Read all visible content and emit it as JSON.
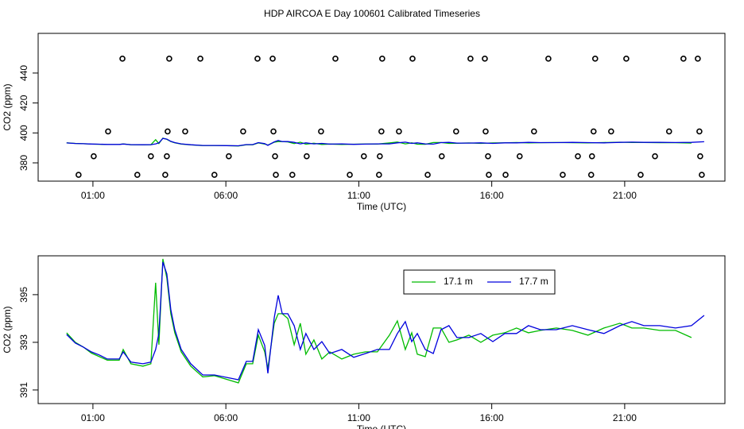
{
  "title": "HDP AIRCOA E  Day 100601  Calibrated Timeseries",
  "chart_data": [
    {
      "type": "line",
      "xlabel": "Time (UTC)",
      "ylabel": "CO2 (ppm)",
      "xlim": [
        -1.06,
        24.77
      ],
      "ylim": [
        367.8,
        466.5
      ],
      "xticks": [
        {
          "value": 1,
          "label": "01:00"
        },
        {
          "value": 6,
          "label": "06:00"
        },
        {
          "value": 11,
          "label": "11:00"
        },
        {
          "value": 16,
          "label": "16:00"
        },
        {
          "value": 21,
          "label": "21:00"
        }
      ],
      "yticks": [
        380,
        400,
        420,
        440
      ],
      "x": [
        0.01,
        0.34,
        0.64,
        0.94,
        1.24,
        1.54,
        1.99,
        2.14,
        2.43,
        2.88,
        3.18,
        3.36,
        3.48,
        3.63,
        3.78,
        3.93,
        4.08,
        4.32,
        4.68,
        5.13,
        5.57,
        6.02,
        6.47,
        6.77,
        7.01,
        7.22,
        7.46,
        7.58,
        7.82,
        7.97,
        8.12,
        8.33,
        8.57,
        8.8,
        9.01,
        9.31,
        9.61,
        9.91,
        10.36,
        10.81,
        11.25,
        11.7,
        12.15,
        12.45,
        12.75,
        12.99,
        13.2,
        13.5,
        13.8,
        14.09,
        14.39,
        14.69,
        15.14,
        15.59,
        16.04,
        16.49,
        16.93,
        17.38,
        17.83,
        18.43,
        19.03,
        19.62,
        20.22,
        20.82,
        21.27,
        21.72,
        22.32,
        22.91,
        23.51,
        23.99
      ],
      "series": [
        {
          "color": "#00bb00",
          "values": [
            393.4,
            393.0,
            392.8,
            392.55,
            392.4,
            392.25,
            392.25,
            392.7,
            392.1,
            392.0,
            392.1,
            395.5,
            392.9,
            396.5,
            395.7,
            394.2,
            393.4,
            392.6,
            392.0,
            391.55,
            391.6,
            391.45,
            391.3,
            392.1,
            392.1,
            393.3,
            392.6,
            391.9,
            393.8,
            394.2,
            394.2,
            394.0,
            392.9,
            393.8,
            392.5,
            393.1,
            392.3,
            392.6,
            392.3,
            392.5,
            392.6,
            392.6,
            393.3,
            393.9,
            392.7,
            393.4,
            392.5,
            392.4,
            393.6,
            393.6,
            393.0,
            393.1,
            393.3,
            393.0,
            393.3,
            393.4,
            393.6,
            393.4,
            393.5,
            393.6,
            393.5,
            393.3,
            393.6,
            393.8,
            393.6,
            393.6,
            393.5,
            393.5,
            393.2,
            null
          ]
        },
        {
          "color": "#0000dd",
          "values": [
            393.33,
            392.97,
            392.8,
            392.6,
            392.47,
            392.3,
            392.3,
            392.6,
            392.17,
            392.1,
            392.17,
            392.7,
            393.37,
            396.37,
            395.87,
            394.37,
            393.53,
            392.7,
            392.1,
            391.63,
            391.63,
            391.53,
            391.43,
            392.2,
            392.2,
            393.53,
            392.87,
            391.7,
            394.03,
            394.97,
            394.2,
            394.2,
            393.7,
            392.7,
            393.37,
            392.7,
            393.03,
            392.53,
            392.7,
            392.37,
            392.53,
            392.7,
            392.7,
            393.37,
            393.87,
            393.03,
            393.37,
            392.7,
            392.53,
            393.53,
            393.7,
            393.2,
            393.2,
            393.37,
            393.03,
            393.37,
            393.37,
            393.7,
            393.53,
            393.53,
            393.7,
            393.53,
            393.37,
            393.7,
            393.87,
            393.7,
            393.7,
            393.6,
            393.7,
            394.13
          ]
        },
        {
          "type": "scatter",
          "color": "#000000",
          "x": [
            2.11,
            3.87,
            5.04,
            7.19,
            7.76,
            10.12,
            11.88,
            13.02,
            15.2,
            15.74,
            18.13,
            19.89,
            21.06,
            23.21,
            23.75,
            1.57,
            3.81,
            4.47,
            6.65,
            7.79,
            9.58,
            11.85,
            12.51,
            14.66,
            15.77,
            17.59,
            19.83,
            20.49,
            22.67,
            23.81,
            1.03,
            3.18,
            3.78,
            6.11,
            7.85,
            9.04,
            11.19,
            11.79,
            14.12,
            15.86,
            17.05,
            19.24,
            19.77,
            22.14,
            23.84,
            0.46,
            2.67,
            3.72,
            5.57,
            7.88,
            8.5,
            10.66,
            11.76,
            13.59,
            15.89,
            16.52,
            18.67,
            19.74,
            21.6,
            23.9
          ],
          "values": [
            449.6,
            449.6,
            449.6,
            449.6,
            449.6,
            449.6,
            449.6,
            449.6,
            449.6,
            449.6,
            449.6,
            449.6,
            449.6,
            449.6,
            449.6,
            401,
            401,
            401,
            401,
            401,
            401,
            401,
            401,
            401,
            401,
            401,
            401,
            401,
            401,
            401,
            384.4,
            384.4,
            384.4,
            384.4,
            384.4,
            384.4,
            384.4,
            384.4,
            384.4,
            384.4,
            384.4,
            384.4,
            384.4,
            384.4,
            384.4,
            372,
            372,
            372,
            372,
            372,
            372,
            372,
            372,
            372,
            372,
            372,
            372,
            372,
            372,
            372
          ]
        }
      ]
    },
    {
      "type": "line",
      "xlabel": "Time (UTC)",
      "ylabel": "CO2 (ppm)",
      "legend": "top-right",
      "xlim": [
        -1.06,
        24.77
      ],
      "ylim": [
        390.43,
        396.63
      ],
      "xticks": [
        {
          "value": 1,
          "label": "01:00"
        },
        {
          "value": 6,
          "label": "06:00"
        },
        {
          "value": 11,
          "label": "11:00"
        },
        {
          "value": 16,
          "label": "16:00"
        },
        {
          "value": 21,
          "label": "21:00"
        }
      ],
      "yticks": [
        391,
        393,
        395
      ],
      "x": [
        0.01,
        0.34,
        0.64,
        0.94,
        1.24,
        1.54,
        1.99,
        2.14,
        2.43,
        2.88,
        3.18,
        3.36,
        3.48,
        3.63,
        3.78,
        3.93,
        4.08,
        4.32,
        4.68,
        5.13,
        5.57,
        6.02,
        6.47,
        6.77,
        7.01,
        7.22,
        7.46,
        7.58,
        7.82,
        7.97,
        8.12,
        8.33,
        8.57,
        8.8,
        9.01,
        9.31,
        9.61,
        9.91,
        10.36,
        10.81,
        11.25,
        11.7,
        12.15,
        12.45,
        12.75,
        12.99,
        13.2,
        13.5,
        13.8,
        14.09,
        14.39,
        14.69,
        15.14,
        15.59,
        16.04,
        16.49,
        16.93,
        17.38,
        17.83,
        18.43,
        19.03,
        19.62,
        20.22,
        20.82,
        21.27,
        21.72,
        22.32,
        22.91,
        23.51,
        23.99
      ],
      "series": [
        {
          "name": "17.1 m",
          "color": "#00bb00",
          "values": [
            393.4,
            393.0,
            392.8,
            392.55,
            392.4,
            392.25,
            392.25,
            392.7,
            392.1,
            392.0,
            392.1,
            395.5,
            392.9,
            396.5,
            395.7,
            394.2,
            393.4,
            392.6,
            392.0,
            391.55,
            391.6,
            391.45,
            391.3,
            392.1,
            392.1,
            393.3,
            392.6,
            391.9,
            393.8,
            394.2,
            394.2,
            394.0,
            392.9,
            393.8,
            392.5,
            393.1,
            392.3,
            392.6,
            392.3,
            392.5,
            392.6,
            392.6,
            393.3,
            393.9,
            392.7,
            393.4,
            392.5,
            392.4,
            393.6,
            393.6,
            393.0,
            393.1,
            393.3,
            393.0,
            393.3,
            393.4,
            393.6,
            393.4,
            393.5,
            393.6,
            393.5,
            393.3,
            393.6,
            393.8,
            393.6,
            393.6,
            393.5,
            393.5,
            393.2,
            null
          ]
        },
        {
          "name": "17.7 m",
          "color": "#0000dd",
          "values": [
            393.33,
            392.97,
            392.8,
            392.6,
            392.47,
            392.3,
            392.3,
            392.6,
            392.17,
            392.1,
            392.17,
            392.7,
            393.37,
            396.37,
            395.87,
            394.37,
            393.53,
            392.7,
            392.1,
            391.63,
            391.63,
            391.53,
            391.43,
            392.2,
            392.2,
            393.53,
            392.87,
            391.7,
            394.03,
            394.97,
            394.2,
            394.2,
            393.7,
            392.7,
            393.37,
            392.7,
            393.03,
            392.53,
            392.7,
            392.37,
            392.53,
            392.7,
            392.7,
            393.37,
            393.87,
            393.03,
            393.37,
            392.7,
            392.53,
            393.53,
            393.7,
            393.2,
            393.2,
            393.37,
            393.03,
            393.37,
            393.37,
            393.7,
            393.53,
            393.53,
            393.7,
            393.53,
            393.37,
            393.7,
            393.87,
            393.7,
            393.7,
            393.6,
            393.7,
            394.13
          ]
        }
      ]
    }
  ]
}
